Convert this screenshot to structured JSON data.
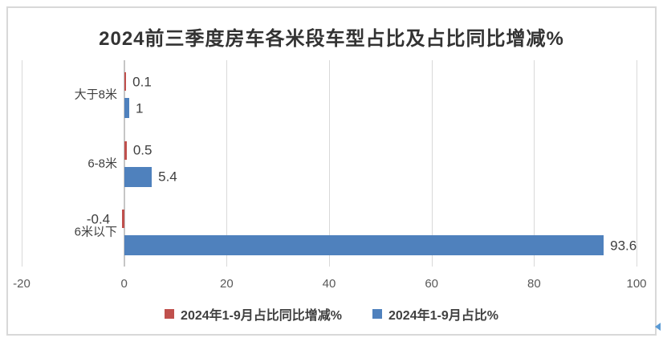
{
  "title": "2024前三季度房车各米段车型占比及占比同比增减%",
  "chart_data": {
    "type": "bar",
    "orientation": "horizontal",
    "title": "2024前三季度房车各米段车型占比及占比同比增减%",
    "categories": [
      "大于8米",
      "6-8米",
      "6米以下"
    ],
    "series": [
      {
        "name": "2024年1-9月占比同比增减%",
        "color": "#C0504D",
        "values": [
          0.1,
          0.5,
          -0.4
        ],
        "labels": [
          "0.1",
          "0.5",
          "-0.4"
        ]
      },
      {
        "name": "2024年1-9月占比%",
        "color": "#4F81BD",
        "values": [
          1,
          5.4,
          93.6
        ],
        "labels": [
          "1",
          "5.4",
          "93.6"
        ]
      }
    ],
    "xlim": [
      -20,
      100
    ],
    "x_ticks": [
      "-20",
      "0",
      "20",
      "40",
      "60",
      "80",
      "100"
    ],
    "xlabel": "",
    "ylabel": "",
    "grid": "vertical-gridlines-only",
    "legend_position": "bottom-center"
  },
  "colors": {
    "series_change": "#C0504D",
    "series_share": "#4F81BD",
    "gridline": "#D9D9D9",
    "axis_line": "#C6C6C6",
    "card_border": "#D8D8D8",
    "title_text": "#333333",
    "tick_text": "#595959",
    "label_text": "#3F3F3F",
    "corner_mark": "#5B9BD5"
  }
}
